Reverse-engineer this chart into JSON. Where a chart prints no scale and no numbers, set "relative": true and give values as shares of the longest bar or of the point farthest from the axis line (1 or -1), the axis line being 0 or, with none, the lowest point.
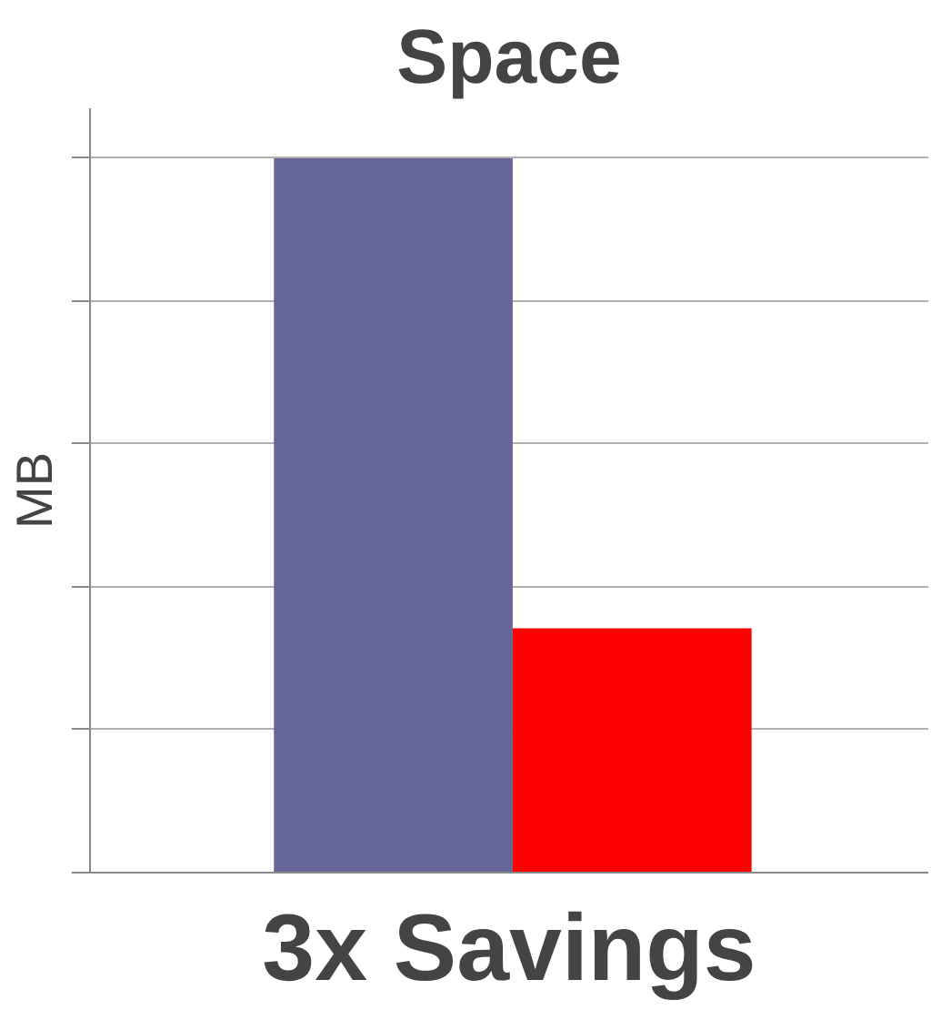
{
  "chart_data": {
    "type": "bar",
    "title": "Space",
    "ylabel": "MB",
    "categories": [
      null,
      null
    ],
    "values": [
      1,
      0.342
    ],
    "colors": [
      "#666699",
      "#ff0000"
    ],
    "relative": true,
    "grid": "y",
    "annotations": [
      "3x Savings"
    ]
  }
}
